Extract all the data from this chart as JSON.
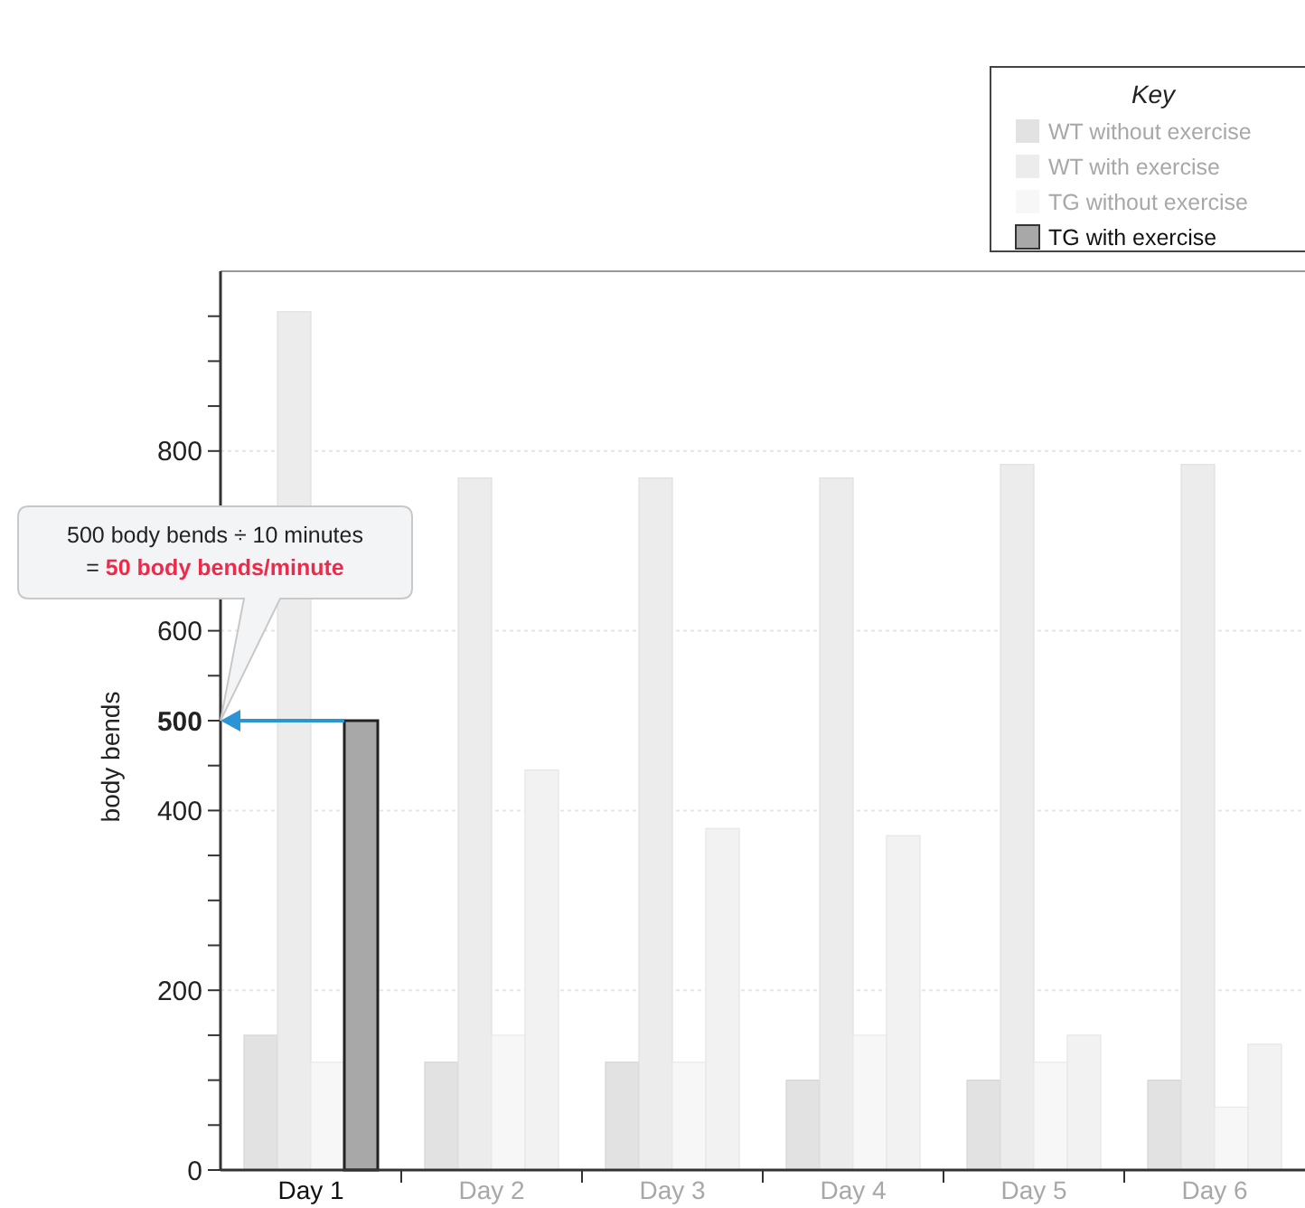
{
  "chart_data": {
    "type": "bar",
    "ylabel": "body bends",
    "categories": [
      "Day 1",
      "Day 2",
      "Day 3",
      "Day 4",
      "Day 5",
      "Day 6"
    ],
    "series": [
      {
        "name": "WT without exercise",
        "color": "#e2e2e2",
        "values": [
          150,
          120,
          120,
          100,
          100,
          100
        ]
      },
      {
        "name": "WT with exercise",
        "color": "#ececec",
        "values": [
          955,
          770,
          770,
          770,
          785,
          785
        ]
      },
      {
        "name": "TG without exercise",
        "color": "#f7f7f7",
        "values": [
          120,
          150,
          120,
          150,
          120,
          70
        ]
      },
      {
        "name": "TG with exercise",
        "color": "#a8a8a8",
        "values": [
          500,
          445,
          380,
          372,
          150,
          140
        ],
        "colors": [
          "#a8a8a8",
          "#f2f2f2",
          "#f2f2f2",
          "#f2f2f2",
          "#f2f2f2",
          "#f2f2f2"
        ]
      }
    ],
    "ylim": [
      0,
      1000
    ],
    "yticks": [
      0,
      {
        "value": 50,
        "label": null
      },
      {
        "value": 100,
        "label": null
      },
      {
        "value": 150,
        "label": null
      },
      200,
      {
        "value": 250,
        "label": null
      },
      {
        "value": 300,
        "label": null
      },
      {
        "value": 350,
        "label": null
      },
      400,
      {
        "value": 450,
        "label": null
      },
      {
        "value": 500,
        "label": "500"
      },
      {
        "value": 550,
        "label": null
      },
      600,
      800,
      {
        "value": 850,
        "label": null
      },
      {
        "value": 900,
        "label": null
      },
      {
        "value": 950,
        "label": null
      }
    ],
    "grid": "y",
    "legend": "top right",
    "legend_title": "Key",
    "annotations": [
      "500 body bends ÷ 10 minutes",
      "= 50 body bends/minute"
    ]
  }
}
